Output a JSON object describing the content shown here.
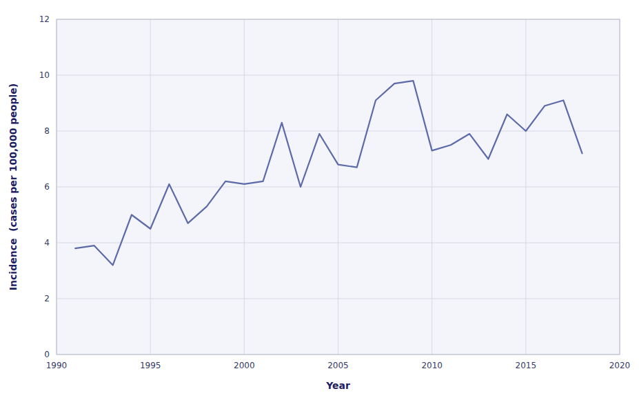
{
  "chart_data": {
    "type": "line",
    "xlabel": "Year",
    "ylabel": "Incidence  (cases per 100,000 people)",
    "x": [
      1991,
      1992,
      1993,
      1994,
      1995,
      1996,
      1997,
      1998,
      1999,
      2000,
      2001,
      2002,
      2003,
      2004,
      2005,
      2006,
      2007,
      2008,
      2009,
      2010,
      2011,
      2012,
      2013,
      2014,
      2015,
      2016,
      2017,
      2018
    ],
    "values": [
      3.8,
      3.9,
      3.2,
      5.0,
      4.5,
      6.1,
      4.7,
      5.3,
      6.2,
      6.1,
      6.2,
      8.3,
      6.0,
      7.9,
      6.8,
      6.7,
      9.1,
      9.7,
      9.8,
      7.3,
      7.5,
      7.9,
      7.0,
      8.6,
      8.0,
      8.9,
      9.1,
      7.2
    ],
    "color": "#5c6aaa",
    "xlim": [
      1990,
      2020
    ],
    "ylim": [
      0,
      12
    ],
    "xticks": [
      1990,
      1995,
      2000,
      2005,
      2010,
      2015,
      2020
    ],
    "yticks": [
      0,
      2,
      4,
      6,
      8,
      10,
      12
    ],
    "grid": true
  }
}
